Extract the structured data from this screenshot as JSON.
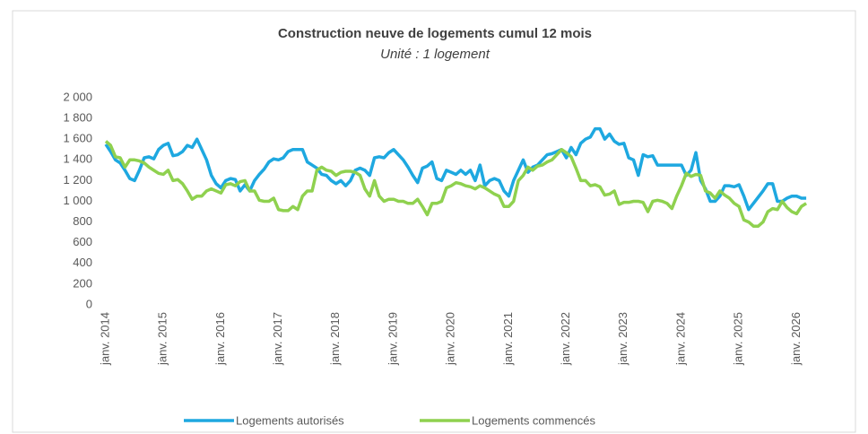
{
  "chart_data": {
    "type": "line",
    "title": "Construction neuve de logements cumul 12 mois",
    "subtitle": "Unité : 1 logement",
    "categories": [
      "janv. 2014",
      null,
      null,
      null,
      null,
      null,
      null,
      null,
      null,
      null,
      null,
      null,
      "janv. 2015",
      null,
      null,
      null,
      null,
      null,
      null,
      null,
      null,
      null,
      null,
      null,
      "janv. 2016",
      null,
      null,
      null,
      null,
      null,
      null,
      null,
      null,
      null,
      null,
      null,
      "janv. 2017",
      null,
      null,
      null,
      null,
      null,
      null,
      null,
      null,
      null,
      null,
      null,
      "janv. 2018",
      null,
      null,
      null,
      null,
      null,
      null,
      null,
      null,
      null,
      null,
      null,
      "janv. 2019",
      null,
      null,
      null,
      null,
      null,
      null,
      null,
      null,
      null,
      null,
      null,
      "janv. 2020",
      null,
      null,
      null,
      null,
      null,
      null,
      null,
      null,
      null,
      null,
      null,
      "janv. 2021",
      null,
      null,
      null,
      null,
      null,
      null,
      null,
      null,
      null,
      null,
      null,
      "janv. 2022",
      null,
      null,
      null,
      null,
      null,
      null,
      null,
      null,
      null,
      null,
      null,
      "janv. 2023",
      null,
      null,
      null,
      null,
      null,
      null,
      null,
      null,
      null,
      null,
      null,
      "janv. 2024",
      null,
      null,
      null,
      null,
      null,
      null,
      null,
      null,
      null,
      null,
      null,
      "janv. 2025",
      null,
      null,
      null,
      null,
      null,
      null,
      null,
      null,
      null,
      null,
      null,
      "janv. 2026",
      null,
      null
    ],
    "series": [
      {
        "name": "Logements autorisés",
        "color": "#1ea8e0",
        "values": [
          1550,
          1480,
          1400,
          1370,
          1300,
          1220,
          1200,
          1300,
          1420,
          1430,
          1410,
          1500,
          1540,
          1560,
          1440,
          1450,
          1480,
          1540,
          1520,
          1600,
          1500,
          1400,
          1250,
          1170,
          1130,
          1200,
          1220,
          1210,
          1100,
          1160,
          1100,
          1200,
          1260,
          1310,
          1380,
          1410,
          1400,
          1420,
          1480,
          1500,
          1500,
          1500,
          1380,
          1350,
          1320,
          1260,
          1250,
          1200,
          1170,
          1200,
          1150,
          1200,
          1300,
          1320,
          1300,
          1250,
          1420,
          1430,
          1420,
          1470,
          1500,
          1450,
          1400,
          1330,
          1250,
          1180,
          1320,
          1340,
          1380,
          1220,
          1200,
          1300,
          1280,
          1260,
          1300,
          1260,
          1300,
          1200,
          1350,
          1150,
          1200,
          1220,
          1200,
          1100,
          1050,
          1200,
          1300,
          1400,
          1280,
          1330,
          1350,
          1400,
          1450,
          1460,
          1480,
          1500,
          1420,
          1520,
          1450,
          1560,
          1600,
          1620,
          1700,
          1700,
          1600,
          1650,
          1580,
          1550,
          1560,
          1420,
          1400,
          1250,
          1450,
          1430,
          1440,
          1350,
          1350,
          1350,
          1350,
          1350,
          1350,
          1250,
          1300,
          1470,
          1200,
          1120,
          1000,
          1000,
          1050,
          1150,
          1150,
          1140,
          1160,
          1050,
          920,
          980,
          1040,
          1100,
          1170,
          1170,
          1000,
          1000,
          1030,
          1050,
          1050,
          1030,
          1030
        ]
      },
      {
        "name": "Logements commencés",
        "color": "#8fd14f",
        "values": [
          1580,
          1540,
          1430,
          1420,
          1330,
          1400,
          1400,
          1390,
          1370,
          1330,
          1300,
          1270,
          1260,
          1300,
          1200,
          1210,
          1170,
          1100,
          1020,
          1050,
          1050,
          1100,
          1120,
          1100,
          1080,
          1160,
          1170,
          1150,
          1190,
          1200,
          1100,
          1100,
          1010,
          1000,
          1000,
          1030,
          920,
          910,
          910,
          950,
          920,
          1050,
          1100,
          1100,
          1300,
          1330,
          1300,
          1290,
          1250,
          1280,
          1290,
          1290,
          1280,
          1250,
          1120,
          1050,
          1200,
          1050,
          1000,
          1020,
          1020,
          1000,
          1000,
          980,
          980,
          1020,
          950,
          870,
          980,
          980,
          1000,
          1130,
          1150,
          1180,
          1170,
          1150,
          1140,
          1120,
          1150,
          1130,
          1100,
          1070,
          1050,
          950,
          950,
          1000,
          1200,
          1250,
          1330,
          1300,
          1340,
          1350,
          1380,
          1400,
          1450,
          1500,
          1470,
          1430,
          1320,
          1200,
          1200,
          1150,
          1160,
          1140,
          1060,
          1070,
          1100,
          970,
          990,
          990,
          1000,
          1000,
          990,
          900,
          1000,
          1010,
          1000,
          980,
          930,
          1050,
          1150,
          1270,
          1240,
          1260,
          1250,
          1100,
          1080,
          1030,
          1100,
          1060,
          1030,
          980,
          950,
          820,
          800,
          760,
          760,
          800,
          900,
          930,
          920,
          1000,
          940,
          900,
          880,
          950,
          980
        ]
      }
    ],
    "ylim": [
      0,
      2000
    ],
    "yticks": [
      0,
      {
        "value": 200,
        "label": "200"
      },
      {
        "value": 400,
        "label": "400"
      },
      {
        "value": 600,
        "label": "600"
      },
      {
        "value": 800,
        "label": "800"
      },
      {
        "value": 1000,
        "label": "1 000"
      },
      {
        "value": 1200,
        "label": "1 200"
      },
      {
        "value": 1400,
        "label": "1 400"
      },
      {
        "value": 1600,
        "label": "1 600"
      },
      {
        "value": 1800,
        "label": "1 800"
      },
      {
        "value": 2000,
        "label": "2 000"
      }
    ],
    "grid": false,
    "legend": "bottom"
  }
}
